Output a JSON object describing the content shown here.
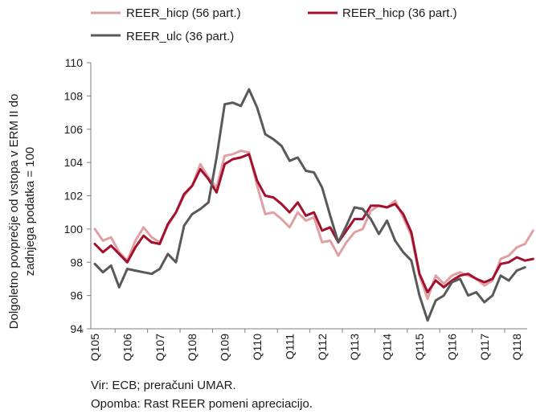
{
  "chart_data": {
    "type": "line",
    "ylabel_lines": [
      "Dolgoletno povprečje od vstopa v ERM II do",
      "zadnjega podatka = 100"
    ],
    "ylim": [
      94,
      110
    ],
    "yticks": [
      94,
      96,
      98,
      100,
      102,
      104,
      106,
      108,
      110
    ],
    "xticks": [
      "Q105",
      "Q106",
      "Q107",
      "Q108",
      "Q109",
      "Q110",
      "Q111",
      "Q112",
      "Q113",
      "Q114",
      "Q115",
      "Q116",
      "Q117",
      "Q118"
    ],
    "grid": false,
    "legend_position": "top",
    "series": [
      {
        "name": "REER_hicp (56 part.)",
        "color": "#e0a0a3",
        "values": [
          100.0,
          99.3,
          99.5,
          98.6,
          98.1,
          99.3,
          100.1,
          99.5,
          99.2,
          100.2,
          101.0,
          102.0,
          102.6,
          103.9,
          103.1,
          102.5,
          104.4,
          104.5,
          104.7,
          104.6,
          102.6,
          100.9,
          101.0,
          100.6,
          100.1,
          101.0,
          100.5,
          100.7,
          99.2,
          99.3,
          98.4,
          99.2,
          99.8,
          100.0,
          101.1,
          101.4,
          101.3,
          101.7,
          100.7,
          99.6,
          97.2,
          95.8,
          97.2,
          96.7,
          97.2,
          97.4,
          97.2,
          97.0,
          96.6,
          96.9,
          98.2,
          98.4,
          98.9,
          99.1,
          99.9
        ]
      },
      {
        "name": "REER_hicp (36 part.)",
        "color": "#a3102e",
        "values": [
          99.1,
          98.6,
          99.0,
          98.5,
          98.0,
          98.9,
          99.6,
          99.2,
          99.1,
          100.3,
          101.0,
          102.1,
          102.6,
          103.6,
          103.0,
          102.2,
          103.9,
          104.2,
          104.3,
          104.5,
          102.9,
          102.0,
          101.9,
          101.5,
          101.0,
          101.6,
          100.8,
          101.0,
          99.9,
          100.1,
          99.2,
          99.9,
          100.6,
          100.6,
          101.4,
          101.4,
          101.3,
          101.5,
          100.9,
          99.8,
          97.3,
          96.2,
          96.9,
          96.5,
          96.9,
          97.2,
          97.3,
          97.0,
          96.8,
          97.0,
          97.9,
          98.0,
          98.3,
          98.1,
          98.2
        ]
      },
      {
        "name": "REER_ulc (36 part.)",
        "color": "#595959",
        "values": [
          97.9,
          97.4,
          97.8,
          96.5,
          97.6,
          97.5,
          97.4,
          97.3,
          97.6,
          98.5,
          98.0,
          100.2,
          100.9,
          101.2,
          101.6,
          104.3,
          107.5,
          107.6,
          107.4,
          108.4,
          107.3,
          105.7,
          105.4,
          105.0,
          104.1,
          104.3,
          103.5,
          103.4,
          102.5,
          100.8,
          99.2,
          100.2,
          101.3,
          101.2,
          100.6,
          99.7,
          100.5,
          99.3,
          98.6,
          98.1,
          96.0,
          94.5,
          95.7,
          96.0,
          96.8,
          97.0,
          96.0,
          96.2,
          95.6,
          96.0,
          97.2,
          96.9,
          97.5,
          97.7
        ]
      }
    ]
  },
  "footnotes": {
    "source": "Vir: ECB; preračuni UMAR.",
    "note": "Opomba: Rast REER pomeni apreciacijo."
  }
}
